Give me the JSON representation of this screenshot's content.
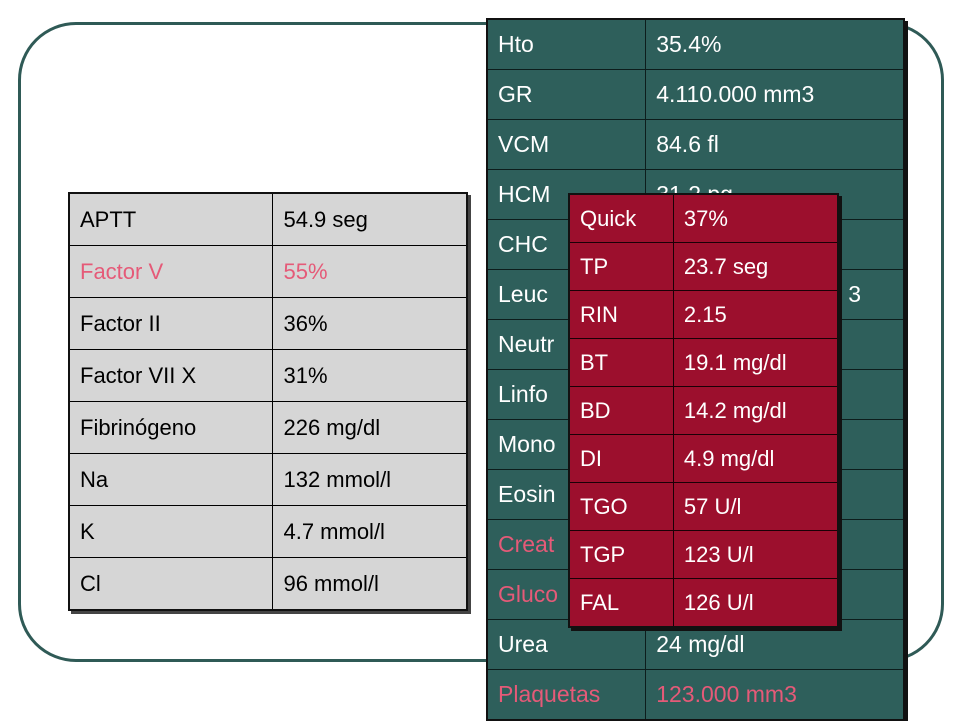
{
  "hemogram": {
    "rows": [
      {
        "label": "Hto",
        "value": "35.4%"
      },
      {
        "label": "GR",
        "value": "4.110.000 mm3"
      },
      {
        "label": "VCM",
        "value": "84.6 fl"
      },
      {
        "label": "HCM",
        "value": "31.2 pg"
      },
      {
        "label": "CHC",
        "value": ""
      },
      {
        "label": "Leuc",
        "value": "3"
      },
      {
        "label": "Neutr",
        "value": ""
      },
      {
        "label": "Linfo",
        "value": ""
      },
      {
        "label": "Mono",
        "value": ""
      },
      {
        "label": "Eosin",
        "value": ""
      },
      {
        "label": "Creat",
        "value": ""
      },
      {
        "label": "Gluco",
        "value": ""
      },
      {
        "label": "Urea",
        "value": "24 mg/dl"
      },
      {
        "label": "Plaquetas",
        "value": "123.000 mm3"
      }
    ]
  },
  "coagulation": {
    "rows": [
      {
        "label": "APTT",
        "value": "54.9 seg"
      },
      {
        "label": "Factor V",
        "value": "55%"
      },
      {
        "label": "Factor II",
        "value": "36%"
      },
      {
        "label": "Factor VII X",
        "value": "31%"
      },
      {
        "label": "Fibrinógeno",
        "value": "226 mg/dl"
      },
      {
        "label": "Na",
        "value": "132 mmol/l"
      },
      {
        "label": "K",
        "value": "4.7 mmol/l"
      },
      {
        "label": "Cl",
        "value": "96 mmol/l"
      }
    ]
  },
  "liver": {
    "rows": [
      {
        "label": "Quick",
        "value": "37%"
      },
      {
        "label": "TP",
        "value": "23.7 seg"
      },
      {
        "label": "RIN",
        "value": "2.15"
      },
      {
        "label": "BT",
        "value": "19.1 mg/dl"
      },
      {
        "label": "BD",
        "value": "14.2 mg/dl"
      },
      {
        "label": "DI",
        "value": "4.9 mg/dl"
      },
      {
        "label": "TGO",
        "value": "57 U/l"
      },
      {
        "label": "TGP",
        "value": "123 U/l"
      },
      {
        "label": "FAL",
        "value": "126 U/l"
      }
    ]
  },
  "colors": {
    "teal": "#2e5f5b",
    "grey": "#d6d6d6",
    "crimson": "#9c0f2d",
    "highlight": "#e55a78"
  }
}
